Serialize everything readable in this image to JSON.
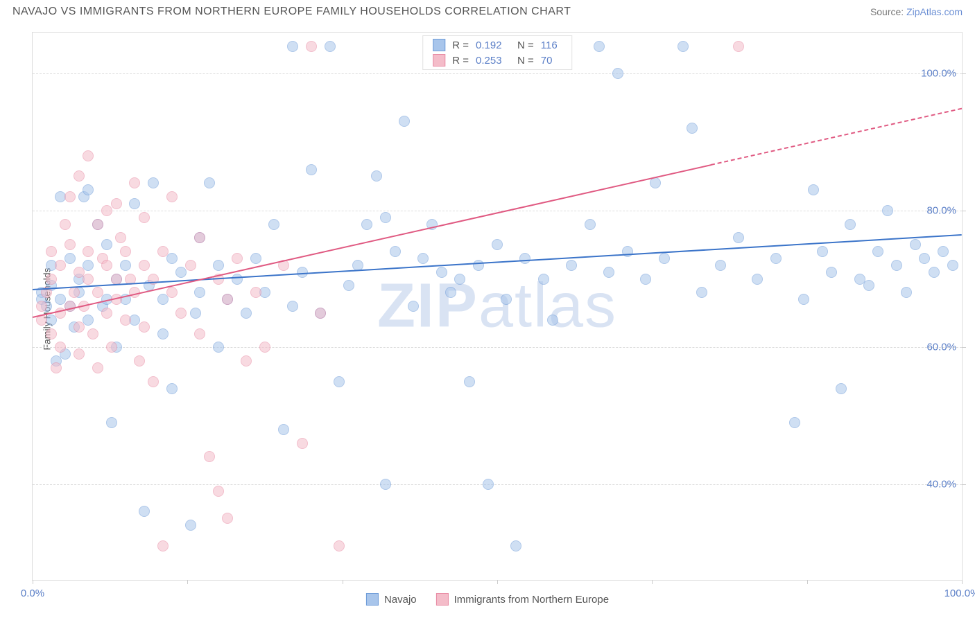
{
  "title": "NAVAJO VS IMMIGRANTS FROM NORTHERN EUROPE FAMILY HOUSEHOLDS CORRELATION CHART",
  "source_label": "Source:",
  "source_name": "ZipAtlas.com",
  "ylabel": "Family Households",
  "watermark_bold": "ZIP",
  "watermark_rest": "atlas",
  "chart": {
    "type": "scatter",
    "background_color": "#ffffff",
    "border_color": "#dddddd",
    "grid_color": "#dcdcdc",
    "xlim": [
      0,
      100
    ],
    "ylim": [
      26,
      106
    ],
    "xtick_positions": [
      0,
      16.67,
      33.33,
      50,
      66.67,
      83.33,
      100
    ],
    "xtick_labels": {
      "0": "0.0%",
      "100": "100.0%"
    },
    "ytick_positions": [
      40,
      60,
      80,
      100
    ],
    "ytick_labels": {
      "40": "40.0%",
      "60": "60.0%",
      "80": "80.0%",
      "100": "100.0%"
    },
    "axis_label_color": "#5b7fc7",
    "axis_label_fontsize": 15,
    "ylabel_fontsize": 14,
    "ylabel_color": "#555555",
    "marker_radius": 8,
    "marker_opacity": 0.55,
    "series": [
      {
        "name": "Navajo",
        "color_fill": "#a8c5eb",
        "color_stroke": "#6d9bd8",
        "R": "0.192",
        "N": "116",
        "regression": {
          "x1": 0,
          "y1": 68.5,
          "x2": 100,
          "y2": 76.5,
          "color": "#3b74c9",
          "width": 2,
          "dash_from_x": null
        },
        "points": [
          [
            1,
            68
          ],
          [
            1,
            67
          ],
          [
            1.5,
            66
          ],
          [
            2,
            69
          ],
          [
            2,
            64
          ],
          [
            2,
            72
          ],
          [
            2.5,
            58
          ],
          [
            3,
            67
          ],
          [
            3,
            82
          ],
          [
            3.5,
            59
          ],
          [
            4,
            66
          ],
          [
            4,
            73
          ],
          [
            4.5,
            63
          ],
          [
            5,
            68
          ],
          [
            5,
            70
          ],
          [
            5.5,
            82
          ],
          [
            6,
            83
          ],
          [
            6,
            72
          ],
          [
            6,
            64
          ],
          [
            7,
            78
          ],
          [
            7.5,
            66
          ],
          [
            8,
            67
          ],
          [
            8,
            75
          ],
          [
            8.5,
            49
          ],
          [
            9,
            70
          ],
          [
            9,
            60
          ],
          [
            10,
            67
          ],
          [
            10,
            72
          ],
          [
            11,
            64
          ],
          [
            11,
            81
          ],
          [
            12,
            36
          ],
          [
            12.5,
            69
          ],
          [
            13,
            84
          ],
          [
            14,
            67
          ],
          [
            14,
            62
          ],
          [
            15,
            54
          ],
          [
            15,
            73
          ],
          [
            16,
            71
          ],
          [
            17,
            34
          ],
          [
            17.5,
            65
          ],
          [
            18,
            76
          ],
          [
            18,
            68
          ],
          [
            19,
            84
          ],
          [
            20,
            60
          ],
          [
            20,
            72
          ],
          [
            21,
            67
          ],
          [
            22,
            70
          ],
          [
            23,
            65
          ],
          [
            24,
            73
          ],
          [
            25,
            68
          ],
          [
            26,
            78
          ],
          [
            27,
            48
          ],
          [
            28,
            66
          ],
          [
            28,
            104
          ],
          [
            29,
            71
          ],
          [
            30,
            86
          ],
          [
            31,
            65
          ],
          [
            32,
            104
          ],
          [
            33,
            55
          ],
          [
            34,
            69
          ],
          [
            35,
            72
          ],
          [
            36,
            78
          ],
          [
            37,
            85
          ],
          [
            38,
            40
          ],
          [
            38,
            79
          ],
          [
            39,
            74
          ],
          [
            40,
            93
          ],
          [
            41,
            66
          ],
          [
            42,
            73
          ],
          [
            43,
            78
          ],
          [
            44,
            71
          ],
          [
            45,
            68
          ],
          [
            46,
            70
          ],
          [
            47,
            55
          ],
          [
            48,
            72
          ],
          [
            49,
            40
          ],
          [
            50,
            75
          ],
          [
            51,
            67
          ],
          [
            52,
            31
          ],
          [
            53,
            73
          ],
          [
            55,
            70
          ],
          [
            56,
            64
          ],
          [
            58,
            72
          ],
          [
            60,
            78
          ],
          [
            61,
            104
          ],
          [
            62,
            71
          ],
          [
            63,
            100
          ],
          [
            64,
            74
          ],
          [
            66,
            70
          ],
          [
            67,
            84
          ],
          [
            68,
            73
          ],
          [
            70,
            104
          ],
          [
            71,
            92
          ],
          [
            72,
            68
          ],
          [
            74,
            72
          ],
          [
            76,
            76
          ],
          [
            78,
            70
          ],
          [
            80,
            73
          ],
          [
            82,
            49
          ],
          [
            83,
            67
          ],
          [
            84,
            83
          ],
          [
            85,
            74
          ],
          [
            86,
            71
          ],
          [
            87,
            54
          ],
          [
            88,
            78
          ],
          [
            89,
            70
          ],
          [
            90,
            69
          ],
          [
            91,
            74
          ],
          [
            92,
            80
          ],
          [
            93,
            72
          ],
          [
            94,
            68
          ],
          [
            95,
            75
          ],
          [
            96,
            73
          ],
          [
            97,
            71
          ],
          [
            98,
            74
          ],
          [
            99,
            72
          ]
        ]
      },
      {
        "name": "Immigrants from Northern Europe",
        "color_fill": "#f4bcc9",
        "color_stroke": "#e88aa3",
        "R": "0.253",
        "N": "70",
        "regression": {
          "x1": 0,
          "y1": 64.5,
          "x2": 100,
          "y2": 95,
          "color": "#e05a82",
          "width": 2,
          "dash_from_x": 73
        },
        "points": [
          [
            1,
            66
          ],
          [
            1,
            64
          ],
          [
            1.5,
            68
          ],
          [
            2,
            62
          ],
          [
            2,
            70
          ],
          [
            2,
            74
          ],
          [
            2.5,
            57
          ],
          [
            3,
            65
          ],
          [
            3,
            60
          ],
          [
            3,
            72
          ],
          [
            3.5,
            78
          ],
          [
            4,
            66
          ],
          [
            4,
            75
          ],
          [
            4,
            82
          ],
          [
            4.5,
            68
          ],
          [
            5,
            63
          ],
          [
            5,
            71
          ],
          [
            5,
            59
          ],
          [
            5,
            85
          ],
          [
            5.5,
            66
          ],
          [
            6,
            88
          ],
          [
            6,
            74
          ],
          [
            6,
            70
          ],
          [
            6.5,
            62
          ],
          [
            7,
            78
          ],
          [
            7,
            68
          ],
          [
            7,
            57
          ],
          [
            7.5,
            73
          ],
          [
            8,
            65
          ],
          [
            8,
            80
          ],
          [
            8,
            72
          ],
          [
            8.5,
            60
          ],
          [
            9,
            70
          ],
          [
            9,
            67
          ],
          [
            9,
            81
          ],
          [
            9.5,
            76
          ],
          [
            10,
            64
          ],
          [
            10,
            74
          ],
          [
            10.5,
            70
          ],
          [
            11,
            84
          ],
          [
            11,
            68
          ],
          [
            11.5,
            58
          ],
          [
            12,
            72
          ],
          [
            12,
            79
          ],
          [
            12,
            63
          ],
          [
            13,
            70
          ],
          [
            13,
            55
          ],
          [
            14,
            74
          ],
          [
            14,
            31
          ],
          [
            15,
            68
          ],
          [
            15,
            82
          ],
          [
            16,
            65
          ],
          [
            17,
            72
          ],
          [
            18,
            76
          ],
          [
            18,
            62
          ],
          [
            19,
            44
          ],
          [
            20,
            70
          ],
          [
            20,
            39
          ],
          [
            21,
            67
          ],
          [
            21,
            35
          ],
          [
            22,
            73
          ],
          [
            23,
            58
          ],
          [
            24,
            68
          ],
          [
            25,
            60
          ],
          [
            27,
            72
          ],
          [
            29,
            46
          ],
          [
            30,
            104
          ],
          [
            31,
            65
          ],
          [
            33,
            31
          ],
          [
            76,
            104
          ]
        ]
      }
    ]
  },
  "legend_top": {
    "rows": [
      {
        "swatch_fill": "#a8c5eb",
        "swatch_stroke": "#6d9bd8",
        "R": "0.192",
        "N": "116"
      },
      {
        "swatch_fill": "#f4bcc9",
        "swatch_stroke": "#e88aa3",
        "R": "0.253",
        "N": "70"
      }
    ],
    "R_label": "R",
    "N_label": "N",
    "eq": "="
  },
  "legend_bottom": [
    {
      "swatch_fill": "#a8c5eb",
      "swatch_stroke": "#6d9bd8",
      "label": "Navajo"
    },
    {
      "swatch_fill": "#f4bcc9",
      "swatch_stroke": "#e88aa3",
      "label": "Immigrants from Northern Europe"
    }
  ]
}
